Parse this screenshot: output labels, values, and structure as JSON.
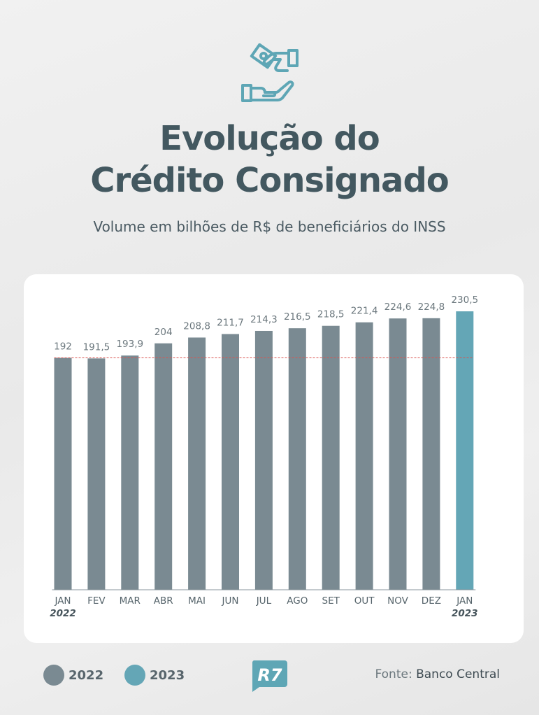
{
  "header": {
    "icon": "hands-money-icon",
    "title_line1": "Evolução do",
    "title_line2": "Crédito Consignado",
    "subtitle": "Volume em bilhões de R$ de beneficiários do INSS"
  },
  "colors": {
    "bar_2022": "#7a8a92",
    "bar_2023": "#64a6b6",
    "reference_line": "#d9534f",
    "text": "#435860"
  },
  "chart_data": {
    "type": "bar",
    "categories": [
      "JAN",
      "FEV",
      "MAR",
      "ABR",
      "MAI",
      "JUN",
      "JUL",
      "AGO",
      "SET",
      "OUT",
      "NOV",
      "DEZ",
      "JAN"
    ],
    "year_labels": [
      "2022",
      "",
      "",
      "",
      "",
      "",
      "",
      "",
      "",
      "",
      "",
      "",
      "2023"
    ],
    "values": [
      192,
      191.5,
      193.9,
      204,
      208.8,
      211.7,
      214.3,
      216.5,
      218.5,
      221.4,
      224.6,
      224.8,
      230.5
    ],
    "value_labels": [
      "192",
      "191,5",
      "193,9",
      "204",
      "208,8",
      "211,7",
      "214,3",
      "216,5",
      "218,5",
      "221,4",
      "224,6",
      "224,8",
      "230,5"
    ],
    "year": [
      "2022",
      "2022",
      "2022",
      "2022",
      "2022",
      "2022",
      "2022",
      "2022",
      "2022",
      "2022",
      "2022",
      "2022",
      "2023"
    ],
    "reference_value": 192,
    "reference_line": "dashed",
    "ylim": [
      0,
      230.5
    ],
    "grid": false,
    "legend_placement": "bottom-left",
    "xlabel": "",
    "ylabel": ""
  },
  "legend": [
    {
      "label": "2022",
      "color": "#7a8a92"
    },
    {
      "label": "2023",
      "color": "#64a6b6"
    }
  ],
  "footer": {
    "logo": "R7",
    "source_prefix": "Fonte:",
    "source_name": "Banco Central"
  }
}
